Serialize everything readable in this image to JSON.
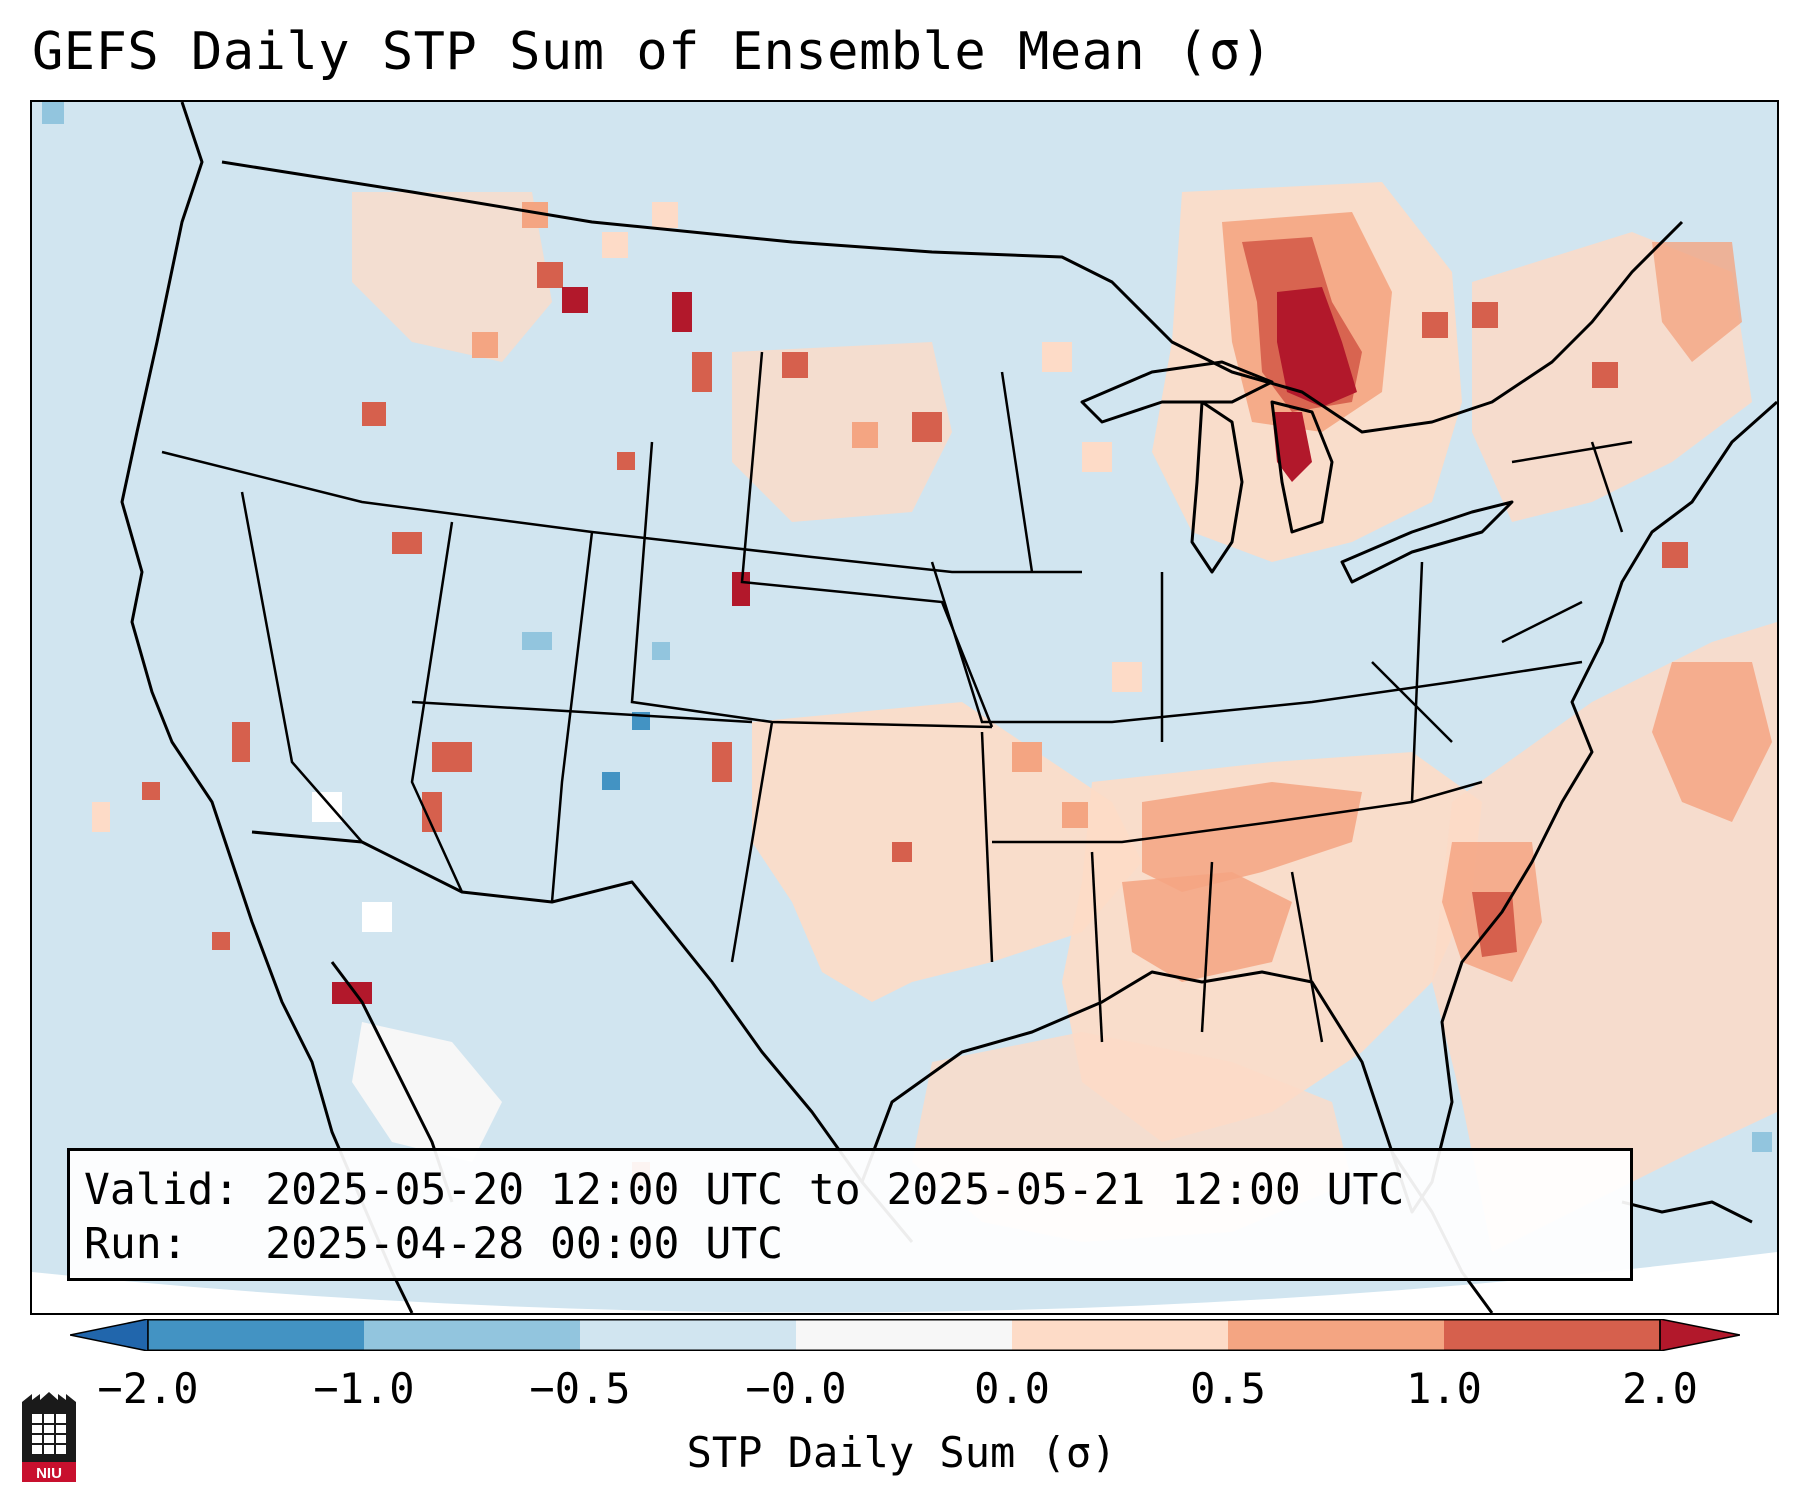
{
  "title": "GEFS Daily STP Sum of Ensemble Mean (σ)",
  "info": {
    "valid_line": "Valid: 2025-05-20 12:00 UTC to 2025-05-21 12:00 UTC",
    "run_line": "Run:   2025-04-28 00:00 UTC"
  },
  "colorbar": {
    "label": "STP Daily Sum (σ)",
    "ticks": [
      "−2.0",
      "−1.0",
      "−0.5",
      "−0.0",
      "0.0",
      "0.5",
      "1.0",
      "2.0"
    ],
    "bins": [
      {
        "from": "<-2.0",
        "color": "#2166ac"
      },
      {
        "from": "-2.0",
        "to": "-1.0",
        "color": "#4393c3"
      },
      {
        "from": "-1.0",
        "to": "-0.5",
        "color": "#92c5de"
      },
      {
        "from": "-0.5",
        "to": "-0.0",
        "color": "#d1e5f0"
      },
      {
        "from": "-0.0",
        "to": "0.0",
        "color": "#f7f7f7"
      },
      {
        "from": "0.0",
        "to": "0.5",
        "color": "#fddbc7"
      },
      {
        "from": "0.5",
        "to": "1.0",
        "color": "#f4a582"
      },
      {
        "from": "1.0",
        "to": "2.0",
        "color": "#d6604d"
      },
      {
        "from": ">2.0",
        "color": "#b2182b"
      }
    ]
  },
  "map": {
    "background_category": "-0.5 to -0.0",
    "regions": [
      {
        "name": "Upper Great Lakes / Ontario",
        "category": "1.0 to 2.0"
      },
      {
        "name": "Tennessee Valley / Deep South",
        "category": "0.5 to 1.0"
      },
      {
        "name": "Southern Plains",
        "category": "0.0 to 0.5"
      },
      {
        "name": "Western Atlantic",
        "category": "0.0 to 0.5"
      },
      {
        "name": "Northern Mexico",
        "category": "-0.0 to 0.0"
      }
    ]
  },
  "logo": {
    "text": "NIU",
    "icon": "niu-logo-icon"
  }
}
